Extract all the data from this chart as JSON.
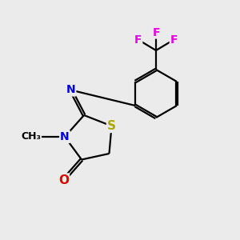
{
  "bg_color": "#ebebeb",
  "bond_color": "#000000",
  "bond_width": 1.6,
  "atom_colors": {
    "F": "#e800e8",
    "N": "#0000dd",
    "O": "#dd0000",
    "S": "#aaaa00",
    "C": "#000000"
  },
  "font_size": 10,
  "figsize": [
    3.0,
    3.0
  ],
  "dpi": 100,
  "xlim": [
    0,
    10
  ],
  "ylim": [
    0,
    10
  ]
}
